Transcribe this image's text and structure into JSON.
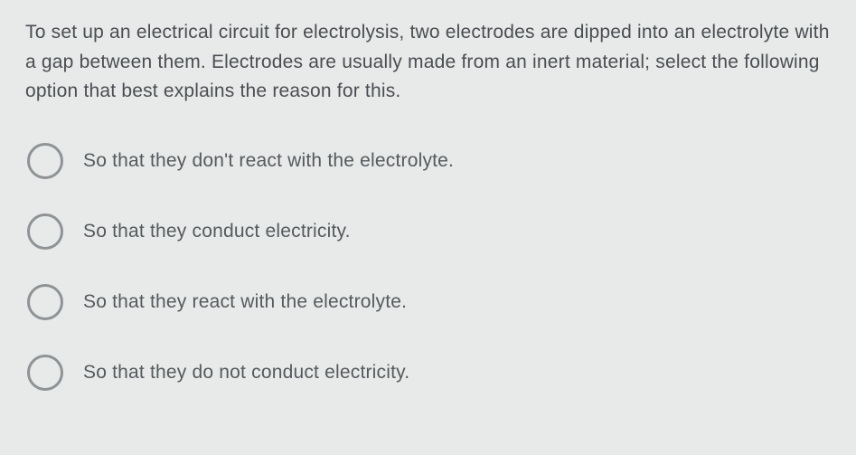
{
  "question": {
    "text": "To set up an electrical circuit for electrolysis, two electrodes are dipped into an electrolyte with a gap between them. Electrodes are usually made from an inert material; select the following option that best explains the reason for this.",
    "text_color": "#4a4e52",
    "font_size": 21
  },
  "options": [
    {
      "label": "So that they don't react with the electrolyte."
    },
    {
      "label": "So that they conduct electricity."
    },
    {
      "label": "So that they react with the electrolyte."
    },
    {
      "label": "So that they do not conduct electricity."
    }
  ],
  "styling": {
    "background_color": "#e8eae9",
    "radio_border_color": "#8e9396",
    "radio_size": 40,
    "radio_border_width": 3,
    "option_text_color": "#555a5e",
    "option_font_size": 21,
    "option_gap": 38
  }
}
